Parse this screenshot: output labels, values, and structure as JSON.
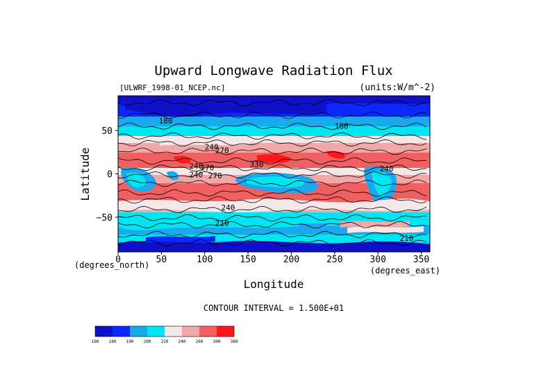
{
  "chart_data": {
    "type": "heatmap",
    "title": "Upward Longwave Radiation Flux",
    "source_label": "[ULWRF_1998-01_NCEP.nc]",
    "units_label": "(units:W/m^-2)",
    "xlabel": "Longitude",
    "ylabel": "Latitude",
    "x_units_label": "(degrees_east)",
    "y_units_label": "(degrees_north)",
    "xlim": [
      0,
      360
    ],
    "ylim": [
      -90,
      90
    ],
    "x_ticks": [
      0,
      50,
      100,
      150,
      200,
      250,
      300,
      350
    ],
    "y_ticks": [
      -50,
      0,
      50
    ],
    "x_tick_labels": [
      "0",
      "50",
      "100",
      "150",
      "200",
      "250",
      "300",
      "350"
    ],
    "y_tick_labels": [
      "−50",
      "0",
      "50"
    ],
    "footer": "CONTOUR INTERVAL = 1.500E+01",
    "contour_labels": [
      {
        "text": "180",
        "lon": 55,
        "lat": 58
      },
      {
        "text": "180",
        "lon": 258,
        "lat": 52
      },
      {
        "text": "240",
        "lon": 108,
        "lat": 28
      },
      {
        "text": "270",
        "lon": 120,
        "lat": 24
      },
      {
        "text": "240",
        "lon": 90,
        "lat": 6
      },
      {
        "text": "270",
        "lon": 103,
        "lat": 4
      },
      {
        "text": "330",
        "lon": 160,
        "lat": 8
      },
      {
        "text": "240",
        "lon": 310,
        "lat": 3
      },
      {
        "text": "240",
        "lon": 90,
        "lat": -4
      },
      {
        "text": "270",
        "lon": 112,
        "lat": -5
      },
      {
        "text": "240",
        "lon": 127,
        "lat": -42
      },
      {
        "text": "210",
        "lon": 120,
        "lat": -60
      },
      {
        "text": "210",
        "lon": 333,
        "lat": -77
      }
    ],
    "colorbar": {
      "levels": [
        "160",
        "180",
        "190",
        "200",
        "220",
        "240",
        "260",
        "300",
        "360"
      ],
      "colors": [
        "#1010c8",
        "#0b28ff",
        "#1ca8ee",
        "#00e5f2",
        "#f6e8e8",
        "#f2a8a8",
        "#f06060",
        "#ff1818"
      ]
    },
    "grid": false,
    "legend": "bottom-left colorbar"
  }
}
